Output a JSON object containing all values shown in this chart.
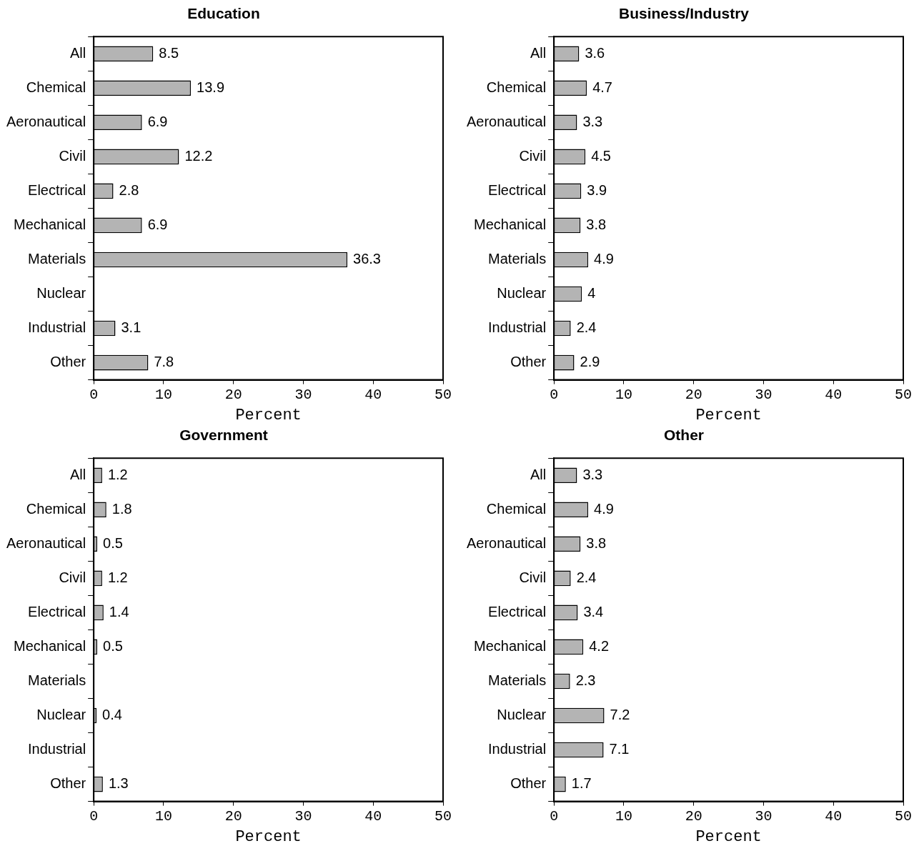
{
  "chart_data": [
    {
      "type": "bar",
      "orientation": "horizontal",
      "title": "Education",
      "xlabel": "Percent",
      "categories": [
        "All",
        "Chemical",
        "Aeronautical",
        "Civil",
        "Electrical",
        "Mechanical",
        "Materials",
        "Nuclear",
        "Industrial",
        "Other"
      ],
      "values": [
        8.5,
        13.9,
        6.9,
        12.2,
        2.8,
        6.9,
        36.3,
        null,
        3.1,
        7.8
      ],
      "color": "#b4b4b4",
      "xlim": [
        0,
        50
      ],
      "xticks": [
        0,
        10,
        20,
        30,
        40,
        50
      ],
      "data_labels": true,
      "grid": false
    },
    {
      "type": "bar",
      "orientation": "horizontal",
      "title": "Business/Industry",
      "xlabel": "Percent",
      "categories": [
        "All",
        "Chemical",
        "Aeronautical",
        "Civil",
        "Electrical",
        "Mechanical",
        "Materials",
        "Nuclear",
        "Industrial",
        "Other"
      ],
      "values": [
        3.6,
        4.7,
        3.3,
        4.5,
        3.9,
        3.8,
        4.9,
        4,
        2.4,
        2.9
      ],
      "color": "#b4b4b4",
      "xlim": [
        0,
        50
      ],
      "xticks": [
        0,
        10,
        20,
        30,
        40,
        50
      ],
      "data_labels": true,
      "grid": false
    },
    {
      "type": "bar",
      "orientation": "horizontal",
      "title": "Government",
      "xlabel": "Percent",
      "categories": [
        "All",
        "Chemical",
        "Aeronautical",
        "Civil",
        "Electrical",
        "Mechanical",
        "Materials",
        "Nuclear",
        "Industrial",
        "Other"
      ],
      "values": [
        1.2,
        1.8,
        0.5,
        1.2,
        1.4,
        0.5,
        null,
        0.4,
        null,
        1.3
      ],
      "color": "#b4b4b4",
      "xlim": [
        0,
        50
      ],
      "xticks": [
        0,
        10,
        20,
        30,
        40,
        50
      ],
      "data_labels": true,
      "grid": false
    },
    {
      "type": "bar",
      "orientation": "horizontal",
      "title": "Other",
      "xlabel": "Percent",
      "categories": [
        "All",
        "Chemical",
        "Aeronautical",
        "Civil",
        "Electrical",
        "Mechanical",
        "Materials",
        "Nuclear",
        "Industrial",
        "Other"
      ],
      "values": [
        3.3,
        4.9,
        3.8,
        2.4,
        3.4,
        4.2,
        2.3,
        7.2,
        7.1,
        1.7
      ],
      "color": "#b4b4b4",
      "xlim": [
        0,
        50
      ],
      "xticks": [
        0,
        10,
        20,
        30,
        40,
        50
      ],
      "data_labels": true,
      "grid": false
    }
  ]
}
